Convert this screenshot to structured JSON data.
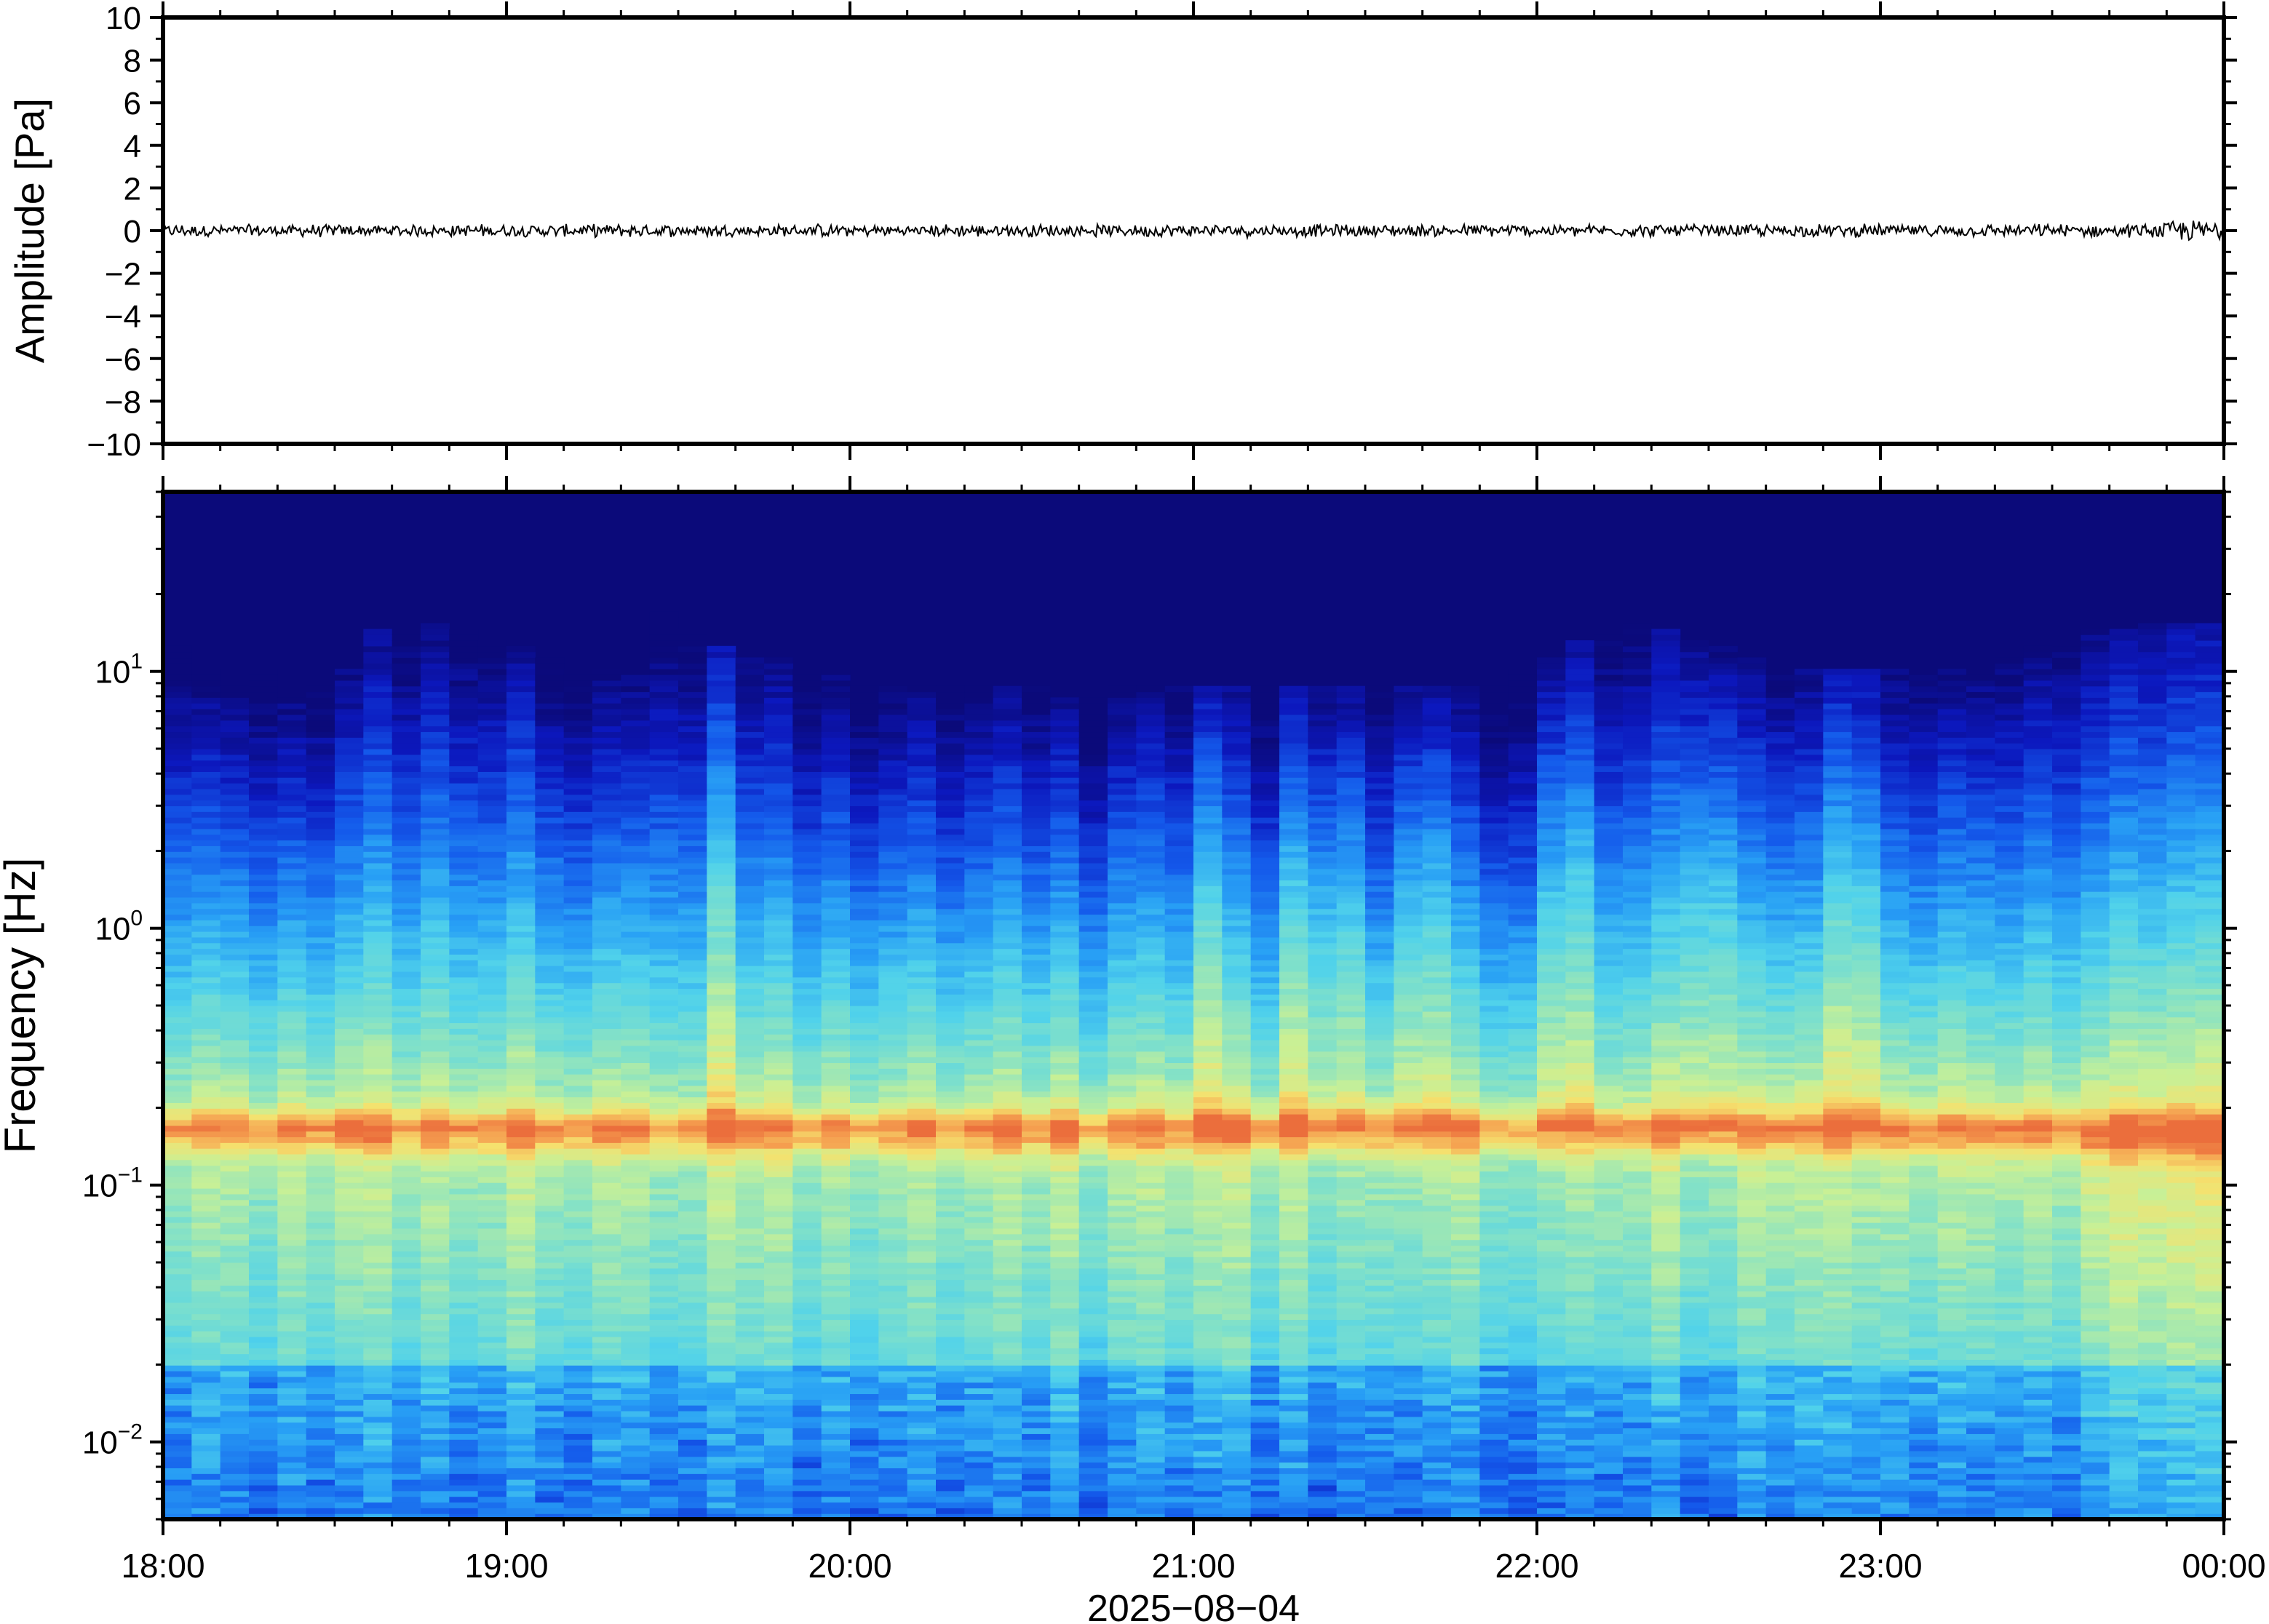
{
  "chart_data": [
    {
      "type": "line",
      "ylabel": "Amplitude [Pa]",
      "ylim": [
        -10,
        10
      ],
      "yticks": [
        "10",
        "8",
        "6",
        "4",
        "2",
        "0",
        "−2",
        "−4",
        "−6",
        "−8",
        "−10"
      ],
      "ytick_values": [
        10,
        8,
        6,
        4,
        2,
        0,
        -2,
        -4,
        -6,
        -8,
        -10
      ],
      "xlim": [
        "18:00",
        "00:00"
      ],
      "series": [
        {
          "values_summary": "noise trace around 0 Pa",
          "mean": 0.0,
          "typical_peak_amplitude": 0.3,
          "max_amplitude_near_end": 0.6
        }
      ],
      "color": "#000000"
    },
    {
      "type": "heatmap",
      "ylabel": "Frequency [Hz]",
      "y_scale": "log",
      "ylim_hz": [
        0.005,
        50
      ],
      "yticks": [
        {
          "base": "10",
          "exp": "−2",
          "value": 0.01
        },
        {
          "base": "10",
          "exp": "−1",
          "value": 0.1
        },
        {
          "base": "10",
          "exp": "0",
          "value": 1
        },
        {
          "base": "10",
          "exp": "1",
          "value": 10
        }
      ],
      "x_ticklabels": [
        "18:00",
        "19:00",
        "20:00",
        "21:00",
        "22:00",
        "23:00",
        "00:00"
      ],
      "xlabel": "2025−08−04",
      "microseom_peak_hz": 0.16,
      "colormap": "jet",
      "upper_cutoff_hz_per_column": [
        11,
        10,
        9,
        8,
        8,
        9,
        9,
        8,
        7,
        7,
        8,
        8,
        9,
        12,
        13,
        13,
        13,
        14,
        14,
        13,
        12,
        12,
        11,
        11,
        11,
        10,
        10,
        9,
        9,
        9,
        9,
        9,
        14,
        15,
        14,
        13,
        12,
        11,
        11,
        10,
        10,
        9,
        9,
        9,
        9,
        8,
        8,
        8,
        8,
        8,
        8,
        8,
        8,
        8,
        8,
        8,
        8,
        8,
        8,
        7,
        7,
        7,
        7,
        8,
        8,
        8,
        8,
        8,
        8,
        8,
        8,
        8,
        8,
        8,
        8,
        8,
        8,
        8,
        8,
        8,
        8,
        8,
        8,
        8,
        8,
        8,
        8,
        8,
        8,
        9,
        9,
        10,
        10,
        11,
        12,
        13,
        13,
        14,
        14,
        13,
        12,
        12,
        11,
        11,
        11,
        10,
        10,
        9,
        9,
        9,
        9,
        9,
        9,
        9,
        9,
        9,
        9,
        9,
        9,
        9,
        9,
        10,
        10,
        11,
        11,
        12,
        12,
        12,
        13,
        13,
        13,
        13,
        14,
        14,
        14,
        14,
        14,
        13
      ],
      "bright_column_fractions": [
        0.27,
        0.51,
        0.55,
        0.57,
        0.6,
        0.62,
        0.67,
        0.69,
        0.75,
        0.76,
        0.82,
        0.83
      ],
      "colors": {
        "background_high_freq": "#0b0a7a",
        "band_peak": "#f08a4b",
        "band_yellow": "#e6ee8a",
        "low_freq_cyan": "#4fd1e6"
      }
    }
  ]
}
